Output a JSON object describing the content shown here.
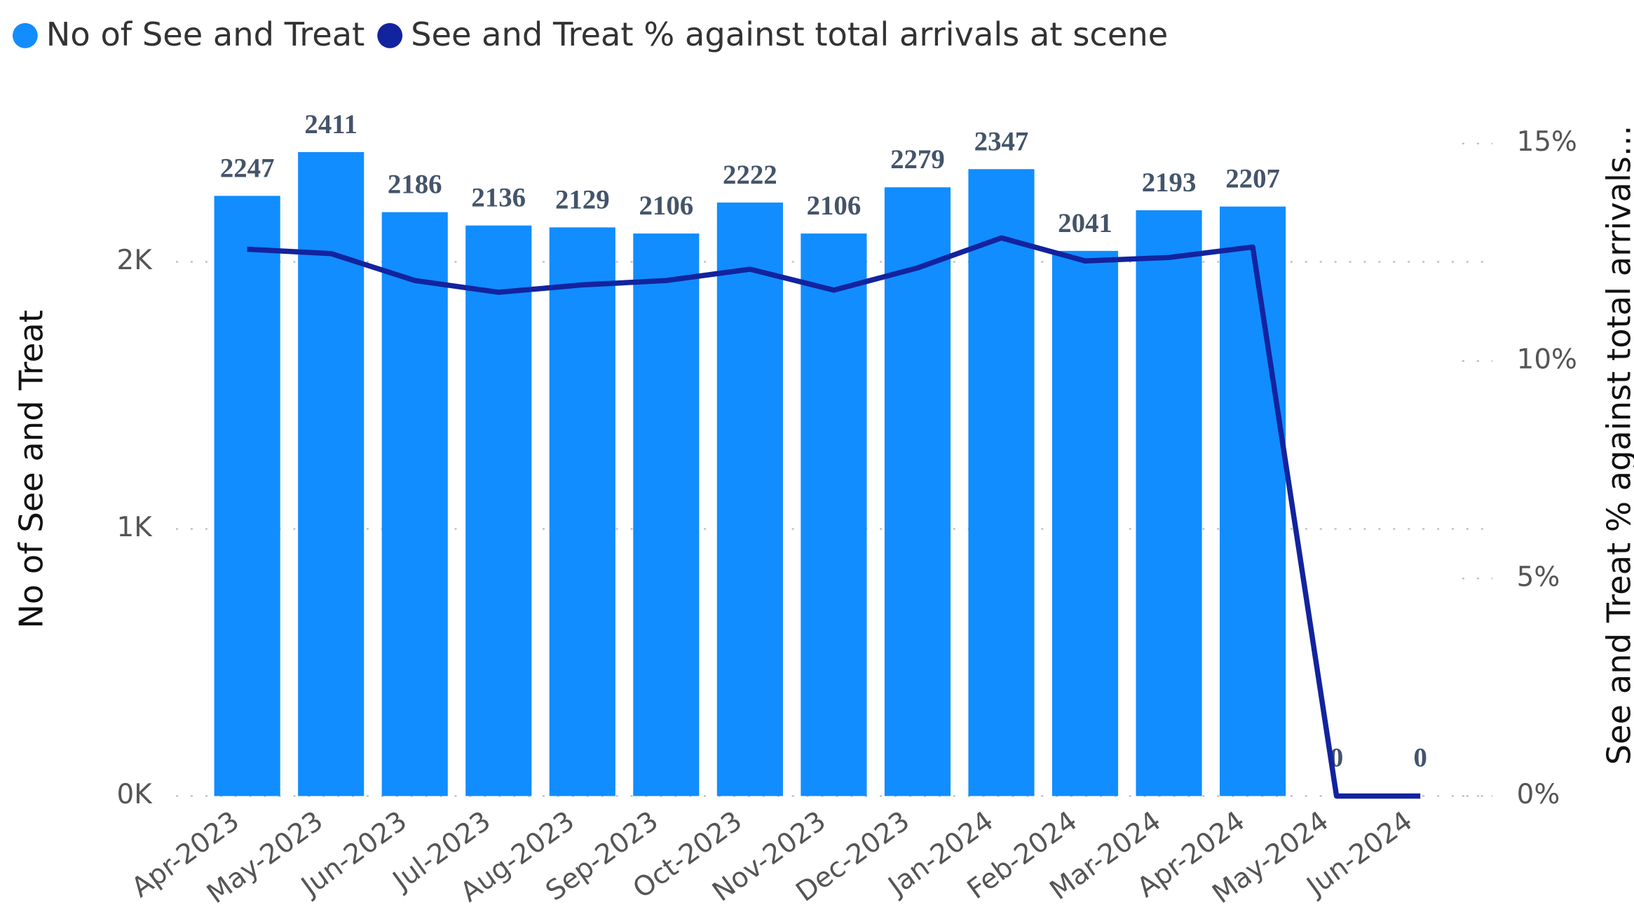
{
  "chart_data": {
    "type": "bar",
    "categories": [
      "Apr-2023",
      "May-2023",
      "Jun-2023",
      "Jul-2023",
      "Aug-2023",
      "Sep-2023",
      "Oct-2023",
      "Nov-2023",
      "Dec-2023",
      "Jan-2024",
      "Feb-2024",
      "Mar-2024",
      "Apr-2024",
      "May-2024",
      "Jun-2024"
    ],
    "series": [
      {
        "name": "No of See and Treat",
        "color": "#118DFF",
        "type": "bar",
        "values": [
          2247,
          2411,
          2186,
          2136,
          2129,
          2106,
          2222,
          2106,
          2279,
          2347,
          2041,
          2193,
          2207,
          0,
          0
        ]
      },
      {
        "name": "See and Treat % against total arrivals at scene",
        "color": "#12239E",
        "type": "line",
        "axis": "y2",
        "values": [
          12.57,
          12.47,
          11.85,
          11.58,
          11.75,
          11.85,
          12.11,
          11.63,
          12.14,
          12.83,
          12.3,
          12.38,
          12.62,
          0,
          0
        ]
      }
    ],
    "ylabel": "No of See and Treat",
    "y2label": "See and Treat % against total arrivals...",
    "ylim": [
      0,
      2443
    ],
    "yticks": [
      {
        "value": 0,
        "label": "0K"
      },
      {
        "value": 1000,
        "label": "1K"
      },
      {
        "value": 2000,
        "label": "2K"
      }
    ],
    "y2lim": [
      0,
      15
    ],
    "y2ticks": [
      {
        "value": 0,
        "label": "0%"
      },
      {
        "value": 5,
        "label": "5%"
      },
      {
        "value": 10,
        "label": "10%"
      },
      {
        "value": 15,
        "label": "15%"
      }
    ],
    "grid": true,
    "legend": "top-left"
  }
}
